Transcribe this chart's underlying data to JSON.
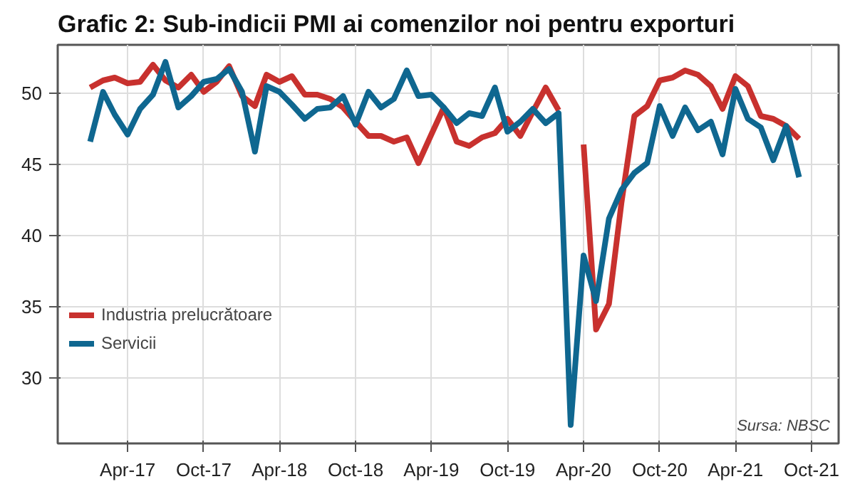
{
  "chart_data": {
    "type": "line",
    "title": "Grafic 2: Sub-indicii PMI ai comenzilor noi pentru exporturi",
    "annotations": [
      "Sursa: NBSC"
    ],
    "x": [
      "2017-01",
      "2017-02",
      "2017-03",
      "2017-04",
      "2017-05",
      "2017-06",
      "2017-07",
      "2017-08",
      "2017-09",
      "2017-10",
      "2017-11",
      "2017-12",
      "2018-01",
      "2018-02",
      "2018-03",
      "2018-04",
      "2018-05",
      "2018-06",
      "2018-07",
      "2018-08",
      "2018-09",
      "2018-10",
      "2018-11",
      "2018-12",
      "2019-01",
      "2019-02",
      "2019-03",
      "2019-04",
      "2019-05",
      "2019-06",
      "2019-07",
      "2019-08",
      "2019-09",
      "2019-10",
      "2019-11",
      "2019-12",
      "2020-01",
      "2020-02",
      "2020-03",
      "2020-04",
      "2020-05",
      "2020-06",
      "2020-07",
      "2020-08",
      "2020-09",
      "2020-10",
      "2020-11",
      "2020-12",
      "2021-01",
      "2021-02",
      "2021-03",
      "2021-04",
      "2021-05",
      "2021-06",
      "2021-07",
      "2021-08",
      "2021-09"
    ],
    "series": [
      {
        "name": "Industria prelucrătoare",
        "color": "#c8312e",
        "values": [
          50.4,
          50.9,
          51.1,
          50.7,
          50.8,
          52.0,
          50.9,
          50.4,
          51.3,
          50.1,
          50.8,
          51.9,
          49.8,
          49.1,
          51.3,
          50.8,
          51.2,
          49.9,
          49.9,
          49.6,
          49.0,
          48.0,
          47.0,
          47.0,
          46.6,
          46.9,
          45.1,
          47.1,
          49.0,
          46.6,
          46.3,
          46.9,
          47.2,
          48.2,
          47.0,
          48.7,
          50.4,
          48.8,
          null,
          46.4,
          33.4,
          35.2,
          42.3,
          48.4,
          49.1,
          50.9,
          51.1,
          51.6,
          51.3,
          50.5,
          48.9,
          51.2,
          50.5,
          48.4,
          48.2,
          47.7,
          46.8
        ]
      },
      {
        "name": "Servicii",
        "color": "#0f6790",
        "values": [
          46.6,
          50.1,
          48.5,
          47.1,
          48.9,
          49.9,
          52.2,
          49.0,
          49.8,
          50.8,
          51.0,
          51.7,
          50.1,
          45.9,
          50.5,
          50.1,
          49.2,
          48.2,
          48.9,
          49.0,
          49.8,
          47.8,
          50.1,
          49.0,
          49.6,
          51.6,
          49.8,
          49.9,
          49.0,
          47.9,
          48.6,
          48.4,
          50.4,
          47.3,
          48.0,
          48.9,
          47.9,
          48.6,
          26.7,
          38.6,
          35.4,
          41.2,
          43.2,
          44.4,
          45.1,
          49.1,
          47.0,
          49.0,
          47.4,
          48.0,
          45.7,
          50.3,
          48.2,
          47.6,
          45.3,
          47.7,
          44.1
        ]
      }
    ],
    "xlim": [
      "2016-10-15",
      "2021-12-05"
    ],
    "xticks": [
      {
        "value": "2017-04",
        "label": "Apr-17"
      },
      {
        "value": "2017-10",
        "label": "Oct-17"
      },
      {
        "value": "2018-04",
        "label": "Apr-18"
      },
      {
        "value": "2018-10",
        "label": "Oct-18"
      },
      {
        "value": "2019-04",
        "label": "Apr-19"
      },
      {
        "value": "2019-10",
        "label": "Oct-19"
      },
      {
        "value": "2020-04",
        "label": "Apr-20"
      },
      {
        "value": "2020-10",
        "label": "Oct-20"
      },
      {
        "value": "2021-04",
        "label": "Apr-21"
      },
      {
        "value": "2021-10",
        "label": "Oct-21"
      }
    ],
    "ylim": [
      25.4,
      53.4
    ],
    "yticks": [
      30,
      35,
      40,
      45,
      50
    ],
    "grid": true,
    "legend": "left",
    "line_style": "solid"
  }
}
